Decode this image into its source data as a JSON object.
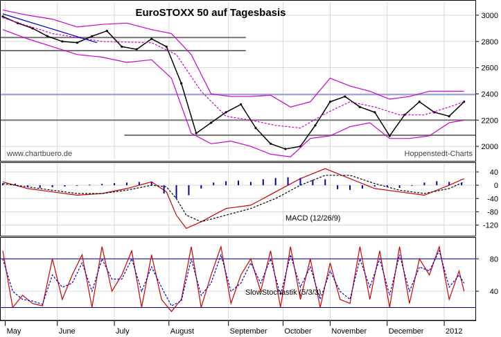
{
  "chart_data": [
    {
      "type": "candlestick",
      "title": "EuroSTOXX 50 auf Tagesbasis",
      "watermark_left": "www.chartbuero.de",
      "watermark_right": "Hoppenstedt-Charts",
      "ylim": [
        1900,
        3100
      ],
      "yticks": [
        2000,
        2200,
        2400,
        2600,
        2800,
        3000
      ],
      "grid": true,
      "months": [
        "May",
        "June",
        "July",
        "August",
        "September",
        "October",
        "November",
        "December",
        "2012"
      ],
      "series": [
        {
          "name": "close",
          "color": "#000000",
          "x": [
            0,
            6,
            12,
            18,
            24,
            30,
            36,
            42,
            48,
            54,
            60,
            66,
            72,
            78,
            84,
            90,
            96,
            102,
            108,
            114,
            120,
            126,
            132,
            138,
            144,
            150,
            156,
            162,
            168,
            174,
            180,
            186
          ],
          "values": [
            2990,
            2940,
            2900,
            2840,
            2800,
            2790,
            2840,
            2880,
            2760,
            2740,
            2820,
            2760,
            2480,
            2100,
            2180,
            2260,
            2320,
            2140,
            2020,
            1980,
            2000,
            2160,
            2340,
            2380,
            2300,
            2260,
            2080,
            2240,
            2340,
            2260,
            2230,
            2340
          ]
        },
        {
          "name": "upper Bollinger band",
          "color": "#cc00cc",
          "x": [
            0,
            10,
            20,
            30,
            40,
            50,
            60,
            68,
            76,
            84,
            92,
            100,
            108,
            116,
            124,
            132,
            140,
            148,
            156,
            164,
            172,
            180,
            186
          ],
          "values": [
            3040,
            3000,
            2970,
            2910,
            2930,
            2940,
            2890,
            2860,
            2700,
            2400,
            2380,
            2380,
            2390,
            2300,
            2340,
            2520,
            2460,
            2420,
            2360,
            2380,
            2420,
            2420,
            2420
          ]
        },
        {
          "name": "lower Bollinger band",
          "color": "#cc00cc",
          "x": [
            0,
            10,
            20,
            30,
            40,
            50,
            60,
            68,
            76,
            84,
            92,
            100,
            108,
            116,
            124,
            132,
            140,
            148,
            156,
            164,
            172,
            180,
            186
          ],
          "values": [
            2890,
            2820,
            2760,
            2700,
            2680,
            2640,
            2660,
            2520,
            2100,
            2020,
            2040,
            2000,
            1940,
            1920,
            2060,
            2080,
            2150,
            2180,
            2060,
            2060,
            2080,
            2180,
            2200
          ]
        },
        {
          "name": "moving average",
          "color": "#cc00cc",
          "x": [
            0,
            20,
            40,
            60,
            70,
            80,
            90,
            100,
            110,
            120,
            130,
            140,
            150,
            160,
            170,
            180,
            186
          ],
          "values": [
            2980,
            2860,
            2800,
            2790,
            2700,
            2420,
            2230,
            2200,
            2160,
            2140,
            2250,
            2340,
            2300,
            2240,
            2240,
            2300,
            2340
          ]
        },
        {
          "name": "trend line",
          "color": "#0000cc",
          "x": [
            0,
            38
          ],
          "values": [
            3010,
            2790
          ]
        }
      ],
      "horizontal_lines": [
        {
          "value": 2830,
          "color": "#777777"
        },
        {
          "value": 2730,
          "color": "#777777"
        },
        {
          "value": 2200,
          "color": "#777777"
        },
        {
          "value": 2085,
          "color": "#777777"
        },
        {
          "value": 2395,
          "color": "#9999dd"
        }
      ]
    },
    {
      "type": "line",
      "label": "MACD (12/26/9)",
      "ylim": [
        -150,
        65
      ],
      "yticks": [
        40,
        0,
        -40,
        -80,
        -120
      ],
      "series": [
        {
          "name": "MACD",
          "color": "#cc0000",
          "x": [
            0,
            10,
            20,
            30,
            40,
            50,
            60,
            66,
            70,
            74,
            80,
            90,
            100,
            110,
            120,
            130,
            140,
            150,
            160,
            170,
            180,
            186
          ],
          "values": [
            10,
            -10,
            -20,
            -30,
            -25,
            -10,
            10,
            -20,
            -90,
            -130,
            -110,
            -70,
            -60,
            -20,
            20,
            50,
            20,
            -10,
            -20,
            -30,
            0,
            20
          ]
        },
        {
          "name": "Signal",
          "color": "#000000",
          "x": [
            0,
            10,
            20,
            30,
            40,
            50,
            60,
            66,
            70,
            74,
            80,
            90,
            100,
            110,
            120,
            130,
            140,
            150,
            160,
            170,
            180,
            186
          ],
          "values": [
            5,
            -5,
            -15,
            -25,
            -25,
            -15,
            0,
            -5,
            -40,
            -90,
            -110,
            -90,
            -70,
            -40,
            0,
            30,
            30,
            5,
            -15,
            -25,
            -10,
            10
          ]
        },
        {
          "name": "Histogram",
          "color": "#0000aa",
          "x": [
            0,
            5,
            10,
            15,
            20,
            25,
            30,
            35,
            40,
            45,
            50,
            55,
            60,
            65,
            70,
            75,
            80,
            85,
            90,
            95,
            100,
            105,
            110,
            115,
            120,
            125,
            130,
            135,
            140,
            145,
            150,
            155,
            160,
            165,
            170,
            175,
            180,
            185
          ],
          "values": [
            6,
            5,
            -6,
            -8,
            -6,
            -4,
            -2,
            2,
            4,
            6,
            8,
            10,
            10,
            -25,
            -40,
            -30,
            -10,
            8,
            12,
            14,
            10,
            18,
            22,
            24,
            22,
            16,
            18,
            -12,
            -14,
            -10,
            -4,
            -6,
            -8,
            -2,
            8,
            12,
            10,
            8
          ]
        }
      ]
    },
    {
      "type": "line",
      "label": "SlowStochastik (5/3/3)",
      "ylim": [
        5,
        105
      ],
      "yticks": [
        80,
        40
      ],
      "horizontal_lines": [
        {
          "value": 80,
          "color": "#000080"
        },
        {
          "value": 20,
          "color": "#000080"
        }
      ],
      "series": [
        {
          "name": "%K",
          "color": "#cc0000",
          "x": [
            0,
            4,
            8,
            12,
            16,
            20,
            24,
            28,
            32,
            36,
            40,
            44,
            48,
            52,
            56,
            60,
            64,
            68,
            72,
            76,
            80,
            84,
            88,
            92,
            96,
            100,
            104,
            108,
            112,
            116,
            120,
            124,
            128,
            132,
            136,
            140,
            144,
            148,
            152,
            156,
            160,
            164,
            168,
            172,
            176,
            180,
            184,
            186
          ],
          "values": [
            90,
            20,
            35,
            25,
            22,
            80,
            30,
            60,
            85,
            20,
            95,
            40,
            60,
            90,
            20,
            85,
            30,
            15,
            30,
            95,
            20,
            60,
            95,
            25,
            60,
            80,
            40,
            90,
            20,
            95,
            30,
            80,
            20,
            75,
            30,
            25,
            95,
            30,
            90,
            20,
            95,
            25,
            80,
            60,
            95,
            30,
            65,
            40
          ]
        },
        {
          "name": "%D",
          "color": "#0000cc",
          "x": [
            0,
            4,
            8,
            12,
            16,
            20,
            24,
            28,
            32,
            36,
            40,
            44,
            48,
            52,
            56,
            60,
            64,
            68,
            72,
            76,
            80,
            84,
            88,
            92,
            96,
            100,
            104,
            108,
            112,
            116,
            120,
            124,
            128,
            132,
            136,
            140,
            144,
            148,
            152,
            156,
            160,
            164,
            168,
            172,
            176,
            180,
            184,
            186
          ],
          "values": [
            80,
            40,
            30,
            28,
            24,
            60,
            45,
            50,
            75,
            40,
            80,
            55,
            55,
            80,
            40,
            70,
            45,
            22,
            28,
            80,
            35,
            50,
            85,
            40,
            50,
            75,
            50,
            80,
            35,
            85,
            45,
            70,
            30,
            65,
            40,
            30,
            80,
            45,
            80,
            35,
            85,
            40,
            70,
            65,
            90,
            45,
            60,
            50
          ]
        }
      ]
    }
  ]
}
